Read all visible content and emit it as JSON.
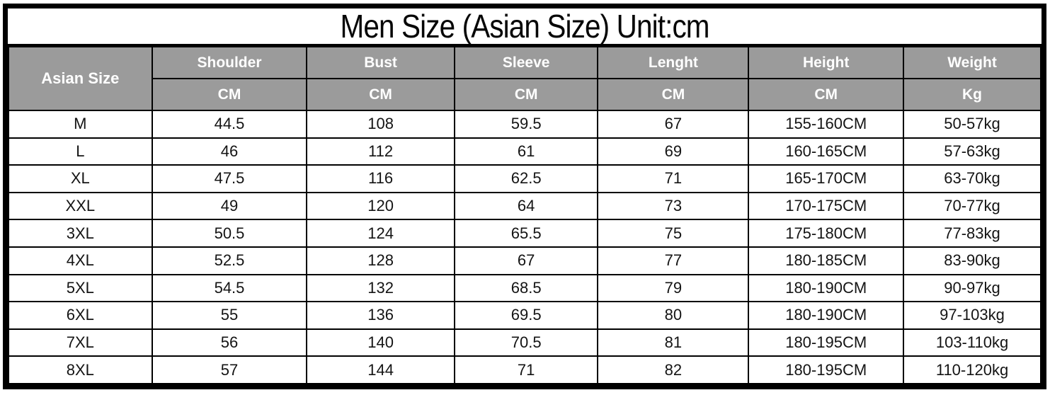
{
  "title": "Men Size (Asian Size) Unit:cm",
  "colors": {
    "header_bg": "#9b9b9b",
    "header_text": "#ffffff",
    "border": "#000000",
    "body_bg": "#ffffff",
    "body_text": "#141414"
  },
  "table": {
    "corner_header": "Asian Size",
    "columns": [
      {
        "label": "Shoulder",
        "unit": "CM"
      },
      {
        "label": "Bust",
        "unit": "CM"
      },
      {
        "label": "Sleeve",
        "unit": "CM"
      },
      {
        "label": "Lenght",
        "unit": "CM"
      },
      {
        "label": "Height",
        "unit": "CM"
      },
      {
        "label": "Weight",
        "unit": "Kg"
      }
    ],
    "rows": [
      [
        "M",
        "44.5",
        "108",
        "59.5",
        "67",
        "155-160CM",
        "50-57kg"
      ],
      [
        "L",
        "46",
        "112",
        "61",
        "69",
        "160-165CM",
        "57-63kg"
      ],
      [
        "XL",
        "47.5",
        "116",
        "62.5",
        "71",
        "165-170CM",
        "63-70kg"
      ],
      [
        "XXL",
        "49",
        "120",
        "64",
        "73",
        "170-175CM",
        "70-77kg"
      ],
      [
        "3XL",
        "50.5",
        "124",
        "65.5",
        "75",
        "175-180CM",
        "77-83kg"
      ],
      [
        "4XL",
        "52.5",
        "128",
        "67",
        "77",
        "180-185CM",
        "83-90kg"
      ],
      [
        "5XL",
        "54.5",
        "132",
        "68.5",
        "79",
        "180-190CM",
        "90-97kg"
      ],
      [
        "6XL",
        "55",
        "136",
        "69.5",
        "80",
        "180-190CM",
        "97-103kg"
      ],
      [
        "7XL",
        "56",
        "140",
        "70.5",
        "81",
        "180-195CM",
        "103-110kg"
      ],
      [
        "8XL",
        "57",
        "144",
        "71",
        "82",
        "180-195CM",
        "110-120kg"
      ]
    ]
  }
}
